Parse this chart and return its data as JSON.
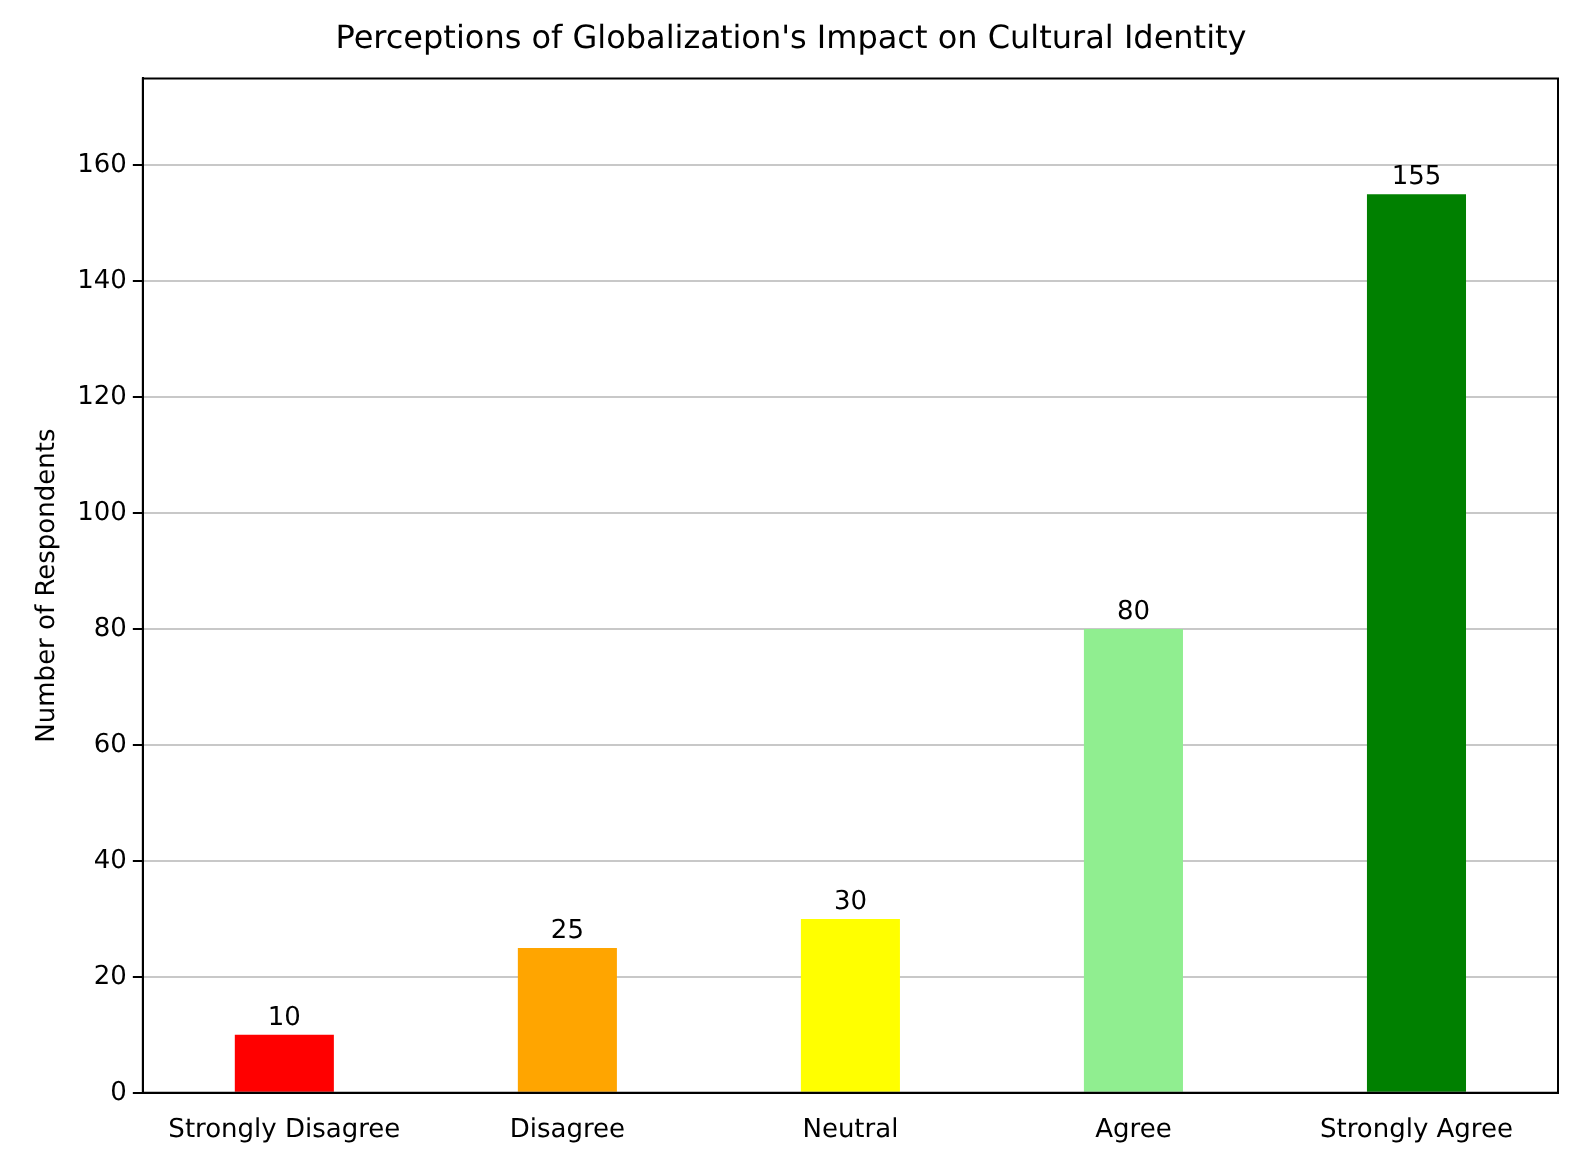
{
  "chart_data": {
    "type": "bar",
    "title": "Perceptions of Globalization's Impact on Cultural Identity",
    "ylabel": "Number of Respondents",
    "categories": [
      "Strongly Disagree",
      "Disagree",
      "Neutral",
      "Agree",
      "Strongly Agree"
    ],
    "values": [
      10,
      25,
      30,
      80,
      155
    ],
    "colors": [
      "#ff0000",
      "#ffa500",
      "#ffff00",
      "#90ee90",
      "#008000"
    ],
    "ylim": [
      0,
      175
    ],
    "yticks": [
      0,
      20,
      40,
      60,
      80,
      100,
      120,
      140,
      160
    ],
    "grid": "y",
    "data_labels": true,
    "legend": false
  }
}
